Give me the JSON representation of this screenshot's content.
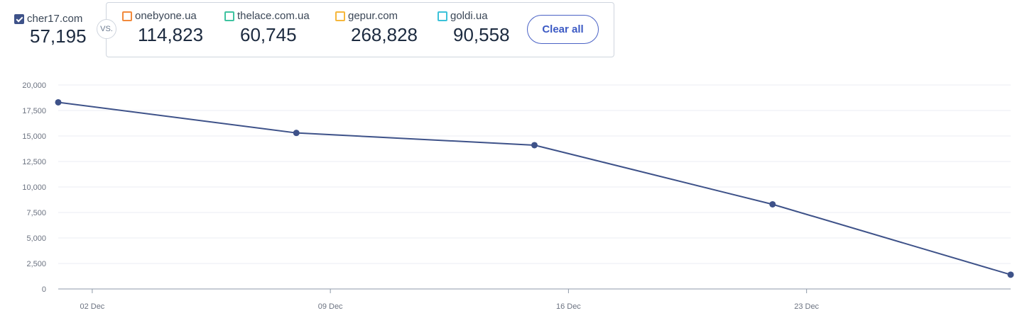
{
  "primary": {
    "name": "cher17.com",
    "value": "57,195",
    "checked": true
  },
  "vs_label": "VS.",
  "competitors": [
    {
      "name": "onebyone.ua",
      "value": "114,823",
      "color": "#f28a3c"
    },
    {
      "name": "thelace.com.ua",
      "value": "60,745",
      "color": "#3fc3a0"
    },
    {
      "name": "gepur.com",
      "value": "268,828",
      "color": "#f6b73c"
    },
    {
      "name": "goldi.ua",
      "value": "90,558",
      "color": "#3cc2d9"
    }
  ],
  "clear_all_label": "Clear all",
  "chart_data": {
    "type": "line",
    "title": "",
    "xlabel": "",
    "ylabel": "",
    "ylim": [
      0,
      20000
    ],
    "yticks": [
      0,
      2500,
      5000,
      7500,
      10000,
      12500,
      15000,
      17500,
      20000
    ],
    "ytick_labels": [
      "0",
      "2,500",
      "5,000",
      "7,500",
      "10,000",
      "12,500",
      "15,000",
      "17,500",
      "20,000"
    ],
    "xticks": [
      "2018-12-02",
      "2018-12-09",
      "2018-12-16",
      "2018-12-23"
    ],
    "xtick_labels": [
      "02 Dec",
      "09 Dec",
      "16 Dec",
      "23 Dec"
    ],
    "xlim": [
      "2018-12-01",
      "2018-12-29"
    ],
    "grid": true,
    "series": [
      {
        "color": "#3e5289",
        "points": [
          {
            "x": "2018-12-01",
            "y": 18300
          },
          {
            "x": "2018-12-08",
            "y": 15300
          },
          {
            "x": "2018-12-15",
            "y": 14100
          },
          {
            "x": "2018-12-22",
            "y": 8300
          },
          {
            "x": "2018-12-29",
            "y": 1400
          }
        ]
      }
    ]
  }
}
